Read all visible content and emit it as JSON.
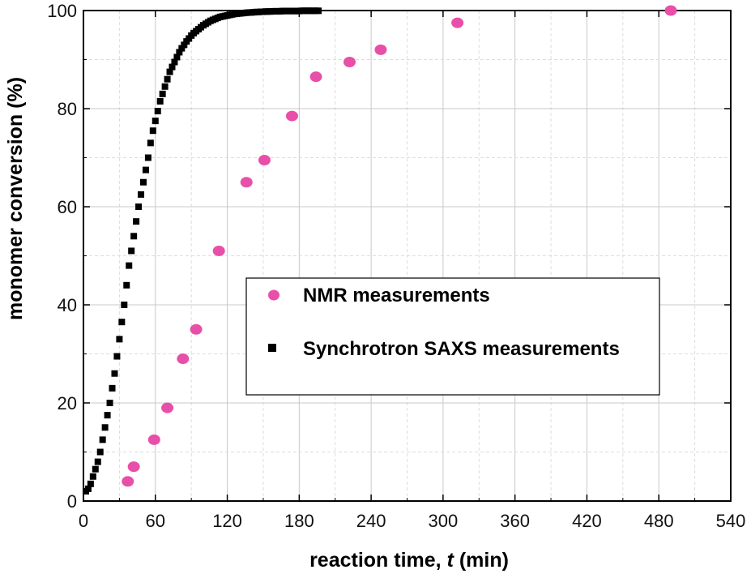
{
  "chart_data": {
    "type": "scatter",
    "xlabel": "reaction time, t (min)",
    "xlabel_parts": [
      "reaction time, ",
      "t",
      " (min)"
    ],
    "ylabel": "monomer conversion (%)",
    "xlim": [
      0,
      540
    ],
    "ylim": [
      0,
      100
    ],
    "x_ticks": [
      0,
      60,
      120,
      180,
      240,
      300,
      360,
      420,
      480,
      540
    ],
    "y_ticks": [
      0,
      20,
      40,
      60,
      80,
      100
    ],
    "x_tick_labels": [
      "0",
      "60",
      "120",
      "180",
      "240",
      "300",
      "360",
      "420",
      "480",
      "540"
    ],
    "y_tick_labels": [
      "0",
      "20",
      "40",
      "60",
      "80",
      "100"
    ],
    "grid": true,
    "legend_position": "center-right",
    "series": [
      {
        "name": "NMR measurements",
        "marker": "circle",
        "color": "#e84fa8",
        "x": [
          37,
          42,
          59,
          70,
          83,
          94,
          113,
          136,
          151,
          174,
          194,
          222,
          248,
          312,
          490
        ],
        "y": [
          4,
          7,
          12.5,
          19,
          29,
          35,
          51,
          65,
          69.5,
          78.5,
          86.5,
          89.5,
          92,
          97.5,
          100
        ]
      },
      {
        "name": "Synchrotron SAXS measurements",
        "marker": "square",
        "color": "#000000",
        "x": [
          2,
          4,
          6,
          8,
          10,
          12,
          14,
          16,
          18,
          20,
          22,
          24,
          26,
          28,
          30,
          32,
          34,
          36,
          38,
          40,
          42,
          44,
          46,
          48,
          50,
          52,
          54,
          56,
          58,
          60,
          62,
          64,
          66,
          68,
          70,
          72,
          74,
          76,
          78,
          80,
          82,
          84,
          86,
          88,
          90,
          92,
          94,
          96,
          98,
          100,
          102,
          104,
          106,
          108,
          110,
          112,
          114,
          116,
          118,
          120,
          122,
          124,
          126,
          128,
          130,
          132,
          134,
          136,
          138,
          140,
          142,
          144,
          146,
          148,
          150,
          152,
          154,
          156,
          158,
          160,
          162,
          164,
          166,
          168,
          170,
          172,
          174,
          176,
          178,
          180,
          182,
          184,
          186,
          188,
          190,
          192,
          194,
          196
        ],
        "y": [
          2,
          2.5,
          3.5,
          5,
          6.5,
          8,
          10,
          12.5,
          15,
          17.5,
          20,
          23,
          26,
          29.5,
          33,
          36.5,
          40,
          44,
          48,
          51,
          54,
          57,
          60,
          62.5,
          65,
          67.5,
          70,
          73,
          75.5,
          77.5,
          79.5,
          81.5,
          83,
          84.5,
          86,
          87.5,
          88.5,
          89.5,
          90.5,
          91.5,
          92.3,
          93,
          93.7,
          94.3,
          94.9,
          95.4,
          95.8,
          96.2,
          96.6,
          97,
          97.3,
          97.6,
          97.9,
          98.1,
          98.3,
          98.5,
          98.7,
          98.8,
          98.9,
          99,
          99.1,
          99.2,
          99.3,
          99.35,
          99.4,
          99.45,
          99.5,
          99.55,
          99.6,
          99.6,
          99.65,
          99.7,
          99.7,
          99.75,
          99.75,
          99.8,
          99.8,
          99.8,
          99.85,
          99.85,
          99.85,
          99.85,
          99.9,
          99.9,
          99.9,
          99.9,
          99.9,
          99.9,
          99.9,
          99.9,
          99.95,
          99.95,
          99.95,
          99.95,
          99.95,
          99.95,
          99.95,
          99.95
        ]
      }
    ]
  }
}
